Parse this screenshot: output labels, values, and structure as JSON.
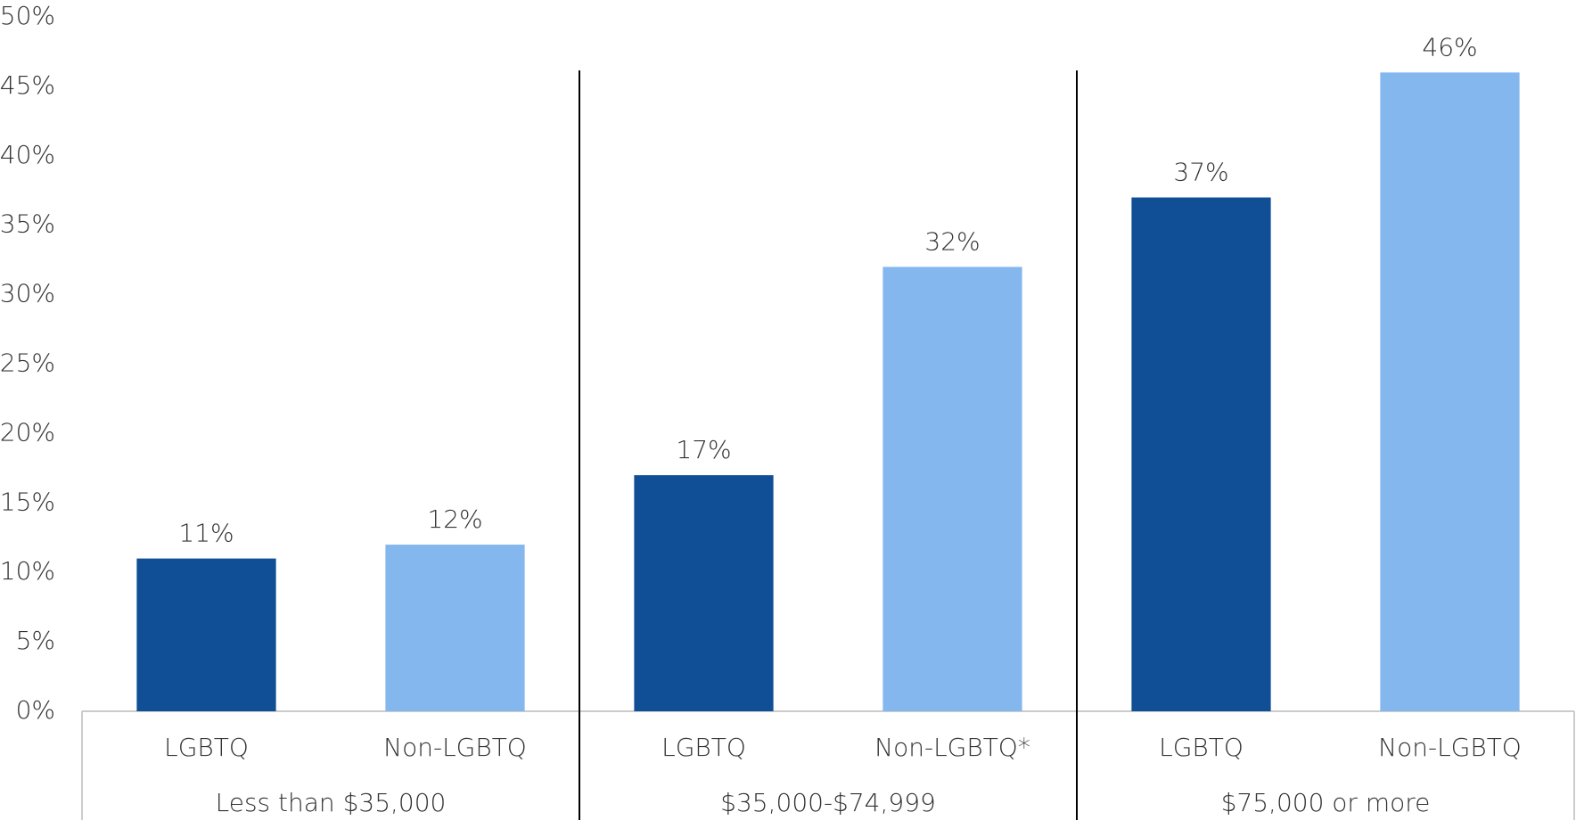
{
  "chart_data": {
    "type": "bar",
    "categories": [
      "LGBTQ",
      "Non-LGBTQ",
      "LGBTQ",
      "Non-LGBTQ*",
      "LGBTQ",
      "Non-LGBTQ"
    ],
    "groups": [
      "Less than $35,000",
      "$35,000-$74,999",
      "$75,000 or more"
    ],
    "values": [
      11,
      12,
      17,
      32,
      37,
      46
    ],
    "value_labels": [
      "11%",
      "12%",
      "17%",
      "32%",
      "37%",
      "46%"
    ],
    "colors": [
      "#104f96",
      "#85b7ef",
      "#104f96",
      "#85b7ef",
      "#104f96",
      "#85b7ef"
    ],
    "ylim": [
      0,
      50
    ],
    "yticks": [
      {
        "value": 0,
        "label": "0%"
      },
      {
        "value": 5,
        "label": "5%"
      },
      {
        "value": 10,
        "label": "10%"
      },
      {
        "value": 15,
        "label": "15%"
      },
      {
        "value": 20,
        "label": "20%"
      },
      {
        "value": 25,
        "label": "25%"
      },
      {
        "value": 30,
        "label": "30%"
      },
      {
        "value": 35,
        "label": "35%"
      },
      {
        "value": 40,
        "label": "40%"
      },
      {
        "value": 45,
        "label": "45%"
      },
      {
        "value": 50,
        "label": "50%"
      }
    ],
    "grid": false
  }
}
